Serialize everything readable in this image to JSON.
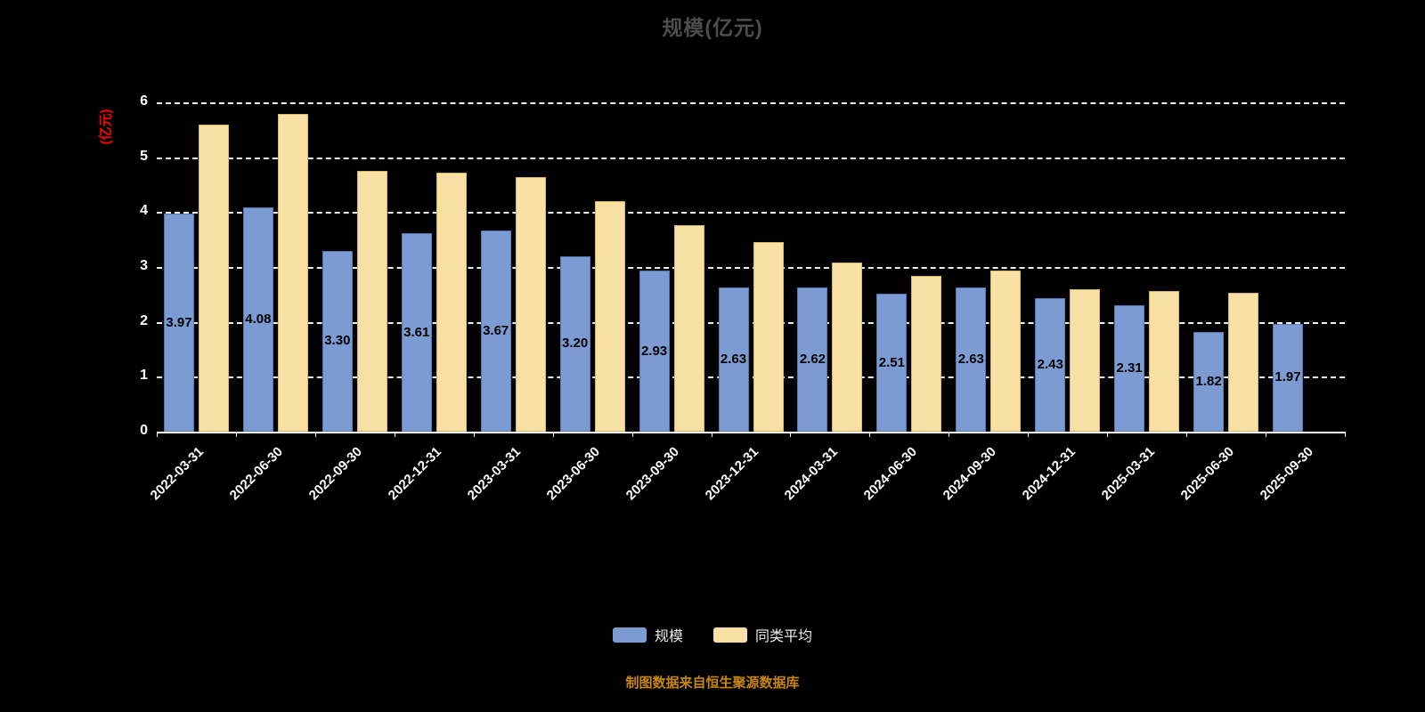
{
  "title": "规模(亿元)",
  "y_axis_label": "(亿元)",
  "source_note": "制图数据来自恒生聚源数据库",
  "colors": {
    "background": "#000000",
    "title": "#4d4d4d",
    "y_axis_label": "#ff0000",
    "axis_line": "#ffffff",
    "gridline": "#f2f2f2",
    "tick_text": "#ffffff",
    "bar_value_label": "#000000",
    "source_note": "#c8860a",
    "series_scale": "#7b9bd2",
    "series_scale_border": "#5377b0",
    "series_average": "#f8dfa3",
    "series_average_border": "#d8b860"
  },
  "chart_data": {
    "type": "bar",
    "title": "规模(亿元)",
    "xlabel": "",
    "ylabel": "(亿元)",
    "ylim": [
      0,
      6
    ],
    "ytick_step": 1,
    "yticks": [
      0,
      1,
      2,
      3,
      4,
      5,
      6
    ],
    "grid": "horizontal dashed",
    "legend_position": "bottom center",
    "categories": [
      "2022-03-31",
      "2022-06-30",
      "2022-09-30",
      "2022-12-31",
      "2023-03-31",
      "2023-06-30",
      "2023-09-30",
      "2023-12-31",
      "2024-03-31",
      "2024-06-30",
      "2024-09-30",
      "2024-12-31",
      "2025-03-31",
      "2025-06-30",
      "2025-09-30"
    ],
    "series": [
      {
        "name": "规模",
        "key": "scale",
        "color": "#7b9bd2",
        "border_color": "#5377b0",
        "show_value_labels": true,
        "values": [
          3.97,
          4.08,
          3.3,
          3.61,
          3.67,
          3.2,
          2.93,
          2.63,
          2.62,
          2.51,
          2.63,
          2.43,
          2.31,
          1.82,
          1.97
        ]
      },
      {
        "name": "同类平均",
        "key": "average",
        "color": "#f8dfa3",
        "border_color": "#d8b860",
        "show_value_labels": false,
        "values": [
          5.59,
          5.79,
          4.75,
          4.72,
          4.63,
          4.2,
          3.77,
          3.45,
          3.08,
          2.83,
          2.93,
          2.6,
          2.56,
          2.53,
          null
        ]
      }
    ]
  }
}
